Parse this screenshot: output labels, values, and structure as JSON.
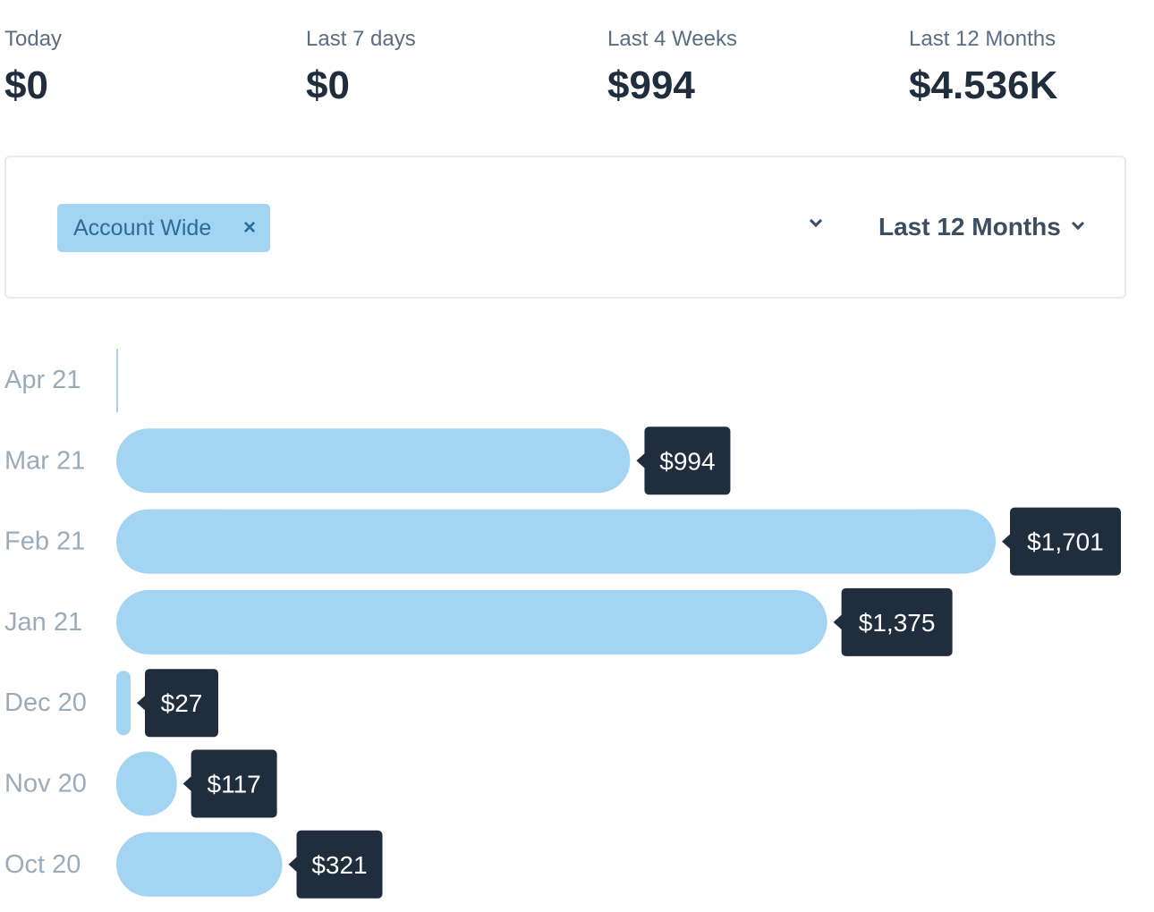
{
  "stats": [
    {
      "label": "Today",
      "value": "$0"
    },
    {
      "label": "Last 7 days",
      "value": "$0"
    },
    {
      "label": "Last 4 Weeks",
      "value": "$994"
    },
    {
      "label": "Last 12 Months",
      "value": "$4.536K"
    }
  ],
  "filter": {
    "tag_label": "Account Wide",
    "tag_close": "×",
    "range_label": "Last 12 Months"
  },
  "colors": {
    "bar": "#a3d4f1",
    "tooltip_bg": "#1f2d3d",
    "tooltip_text": "#ffffff",
    "axis_label": "#9aabba",
    "axis_line": "#a3d4f1"
  },
  "chart_data": {
    "type": "bar",
    "orientation": "horizontal",
    "categories": [
      "Apr 21",
      "Mar 21",
      "Feb 21",
      "Jan 21",
      "Dec 20",
      "Nov 20",
      "Oct 20"
    ],
    "values": [
      0,
      994,
      1701,
      1375,
      27,
      117,
      321
    ],
    "data_labels": [
      "",
      "$994",
      "$1,701",
      "$1,375",
      "$27",
      "$117",
      "$321"
    ],
    "xlim": [
      0,
      1701
    ],
    "grid": false,
    "legend": "none"
  }
}
